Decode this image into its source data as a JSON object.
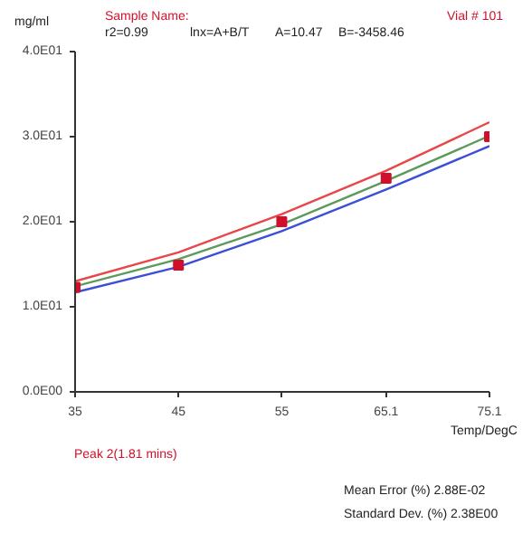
{
  "chart_data": {
    "type": "line",
    "ylabel": "mg/ml",
    "xlabel": "Temp/DegC",
    "annotations": [
      "Sample Name:",
      "Vial # 101",
      "r2=0.99",
      "lnx=A+B/T",
      "A=10.47",
      "B=-3458.46",
      "Peak 2(1.81 mins)",
      "Mean Error (%) 2.88E-02",
      "Standard Dev. (%) 2.38E00"
    ],
    "x": [
      35,
      45,
      55,
      65.1,
      75.1
    ],
    "series": [
      {
        "color": "#e8474a",
        "values": [
          13.0,
          16.4,
          20.9,
          26.0,
          31.7
        ]
      },
      {
        "color": "#5a9a5a",
        "values": [
          12.4,
          15.6,
          19.7,
          24.8,
          30.1
        ]
      },
      {
        "color": "#3b4fd6",
        "values": [
          11.7,
          14.7,
          18.9,
          23.8,
          28.9
        ]
      },
      {
        "type": "scatter",
        "color": "#d0102a",
        "marker": "square",
        "values": [
          12.3,
          14.9,
          20.0,
          25.1,
          30.0
        ]
      }
    ],
    "xlim": [
      35,
      75.1
    ],
    "ylim": [
      0,
      40
    ],
    "xticks": [
      35,
      45,
      55,
      65.1,
      75.1
    ],
    "yticks": [
      {
        "value": 0,
        "label": "0.0E00"
      },
      {
        "value": 10,
        "label": "1.0E01"
      },
      {
        "value": 20,
        "label": "2.0E01"
      },
      {
        "value": 30,
        "label": "3.0E01"
      },
      {
        "value": 40,
        "label": "4.0E01"
      }
    ],
    "grid": false
  }
}
